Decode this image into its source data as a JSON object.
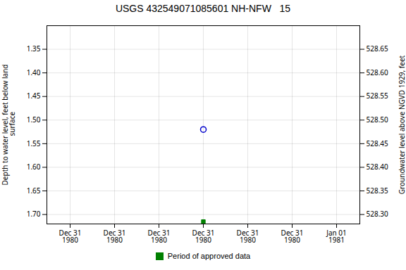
{
  "chart_data": {
    "type": "scatter",
    "title": "USGS 432549071085601 NH-NFW   15",
    "ylabel": "Depth to water level, feet below land\n surface",
    "y2label": "Groundwater level above NGVD 1929, feet",
    "categories": [
      "Dec 31\n1980",
      "Dec 31\n1980",
      "Dec 31\n1980",
      "Dec 31\n1980",
      "Dec 31\n1980",
      "Dec 31\n1980",
      "Jan 01\n1981"
    ],
    "series": [
      {
        "color": "#0000cc",
        "marker": "circle",
        "values": [
          null,
          null,
          null,
          1.52,
          null,
          null,
          null
        ]
      },
      {
        "name": "Period of approved data",
        "color": "#008000",
        "marker": "square",
        "values": [
          null,
          null,
          null,
          1.715,
          null,
          null,
          null
        ]
      }
    ],
    "ylim": [
      1.72,
      1.3
    ],
    "yticks": [
      1.35,
      {
        "value": 1.4,
        "label": "1.40"
      },
      1.45,
      {
        "value": 1.5,
        "label": "1.50"
      },
      1.55,
      {
        "value": 1.6,
        "label": "1.60"
      },
      1.65,
      {
        "value": 1.7,
        "label": "1.70"
      }
    ],
    "y2lim": [
      528.28,
      528.7
    ],
    "y2ticks": [
      528.65,
      {
        "value": 528.6,
        "label": "528.60"
      },
      528.55,
      {
        "value": 528.5,
        "label": "528.50"
      },
      528.45,
      {
        "value": 528.4,
        "label": "528.40"
      },
      528.35,
      {
        "value": 528.3,
        "label": "528.30"
      }
    ],
    "grid": true,
    "legend": "bottom"
  }
}
